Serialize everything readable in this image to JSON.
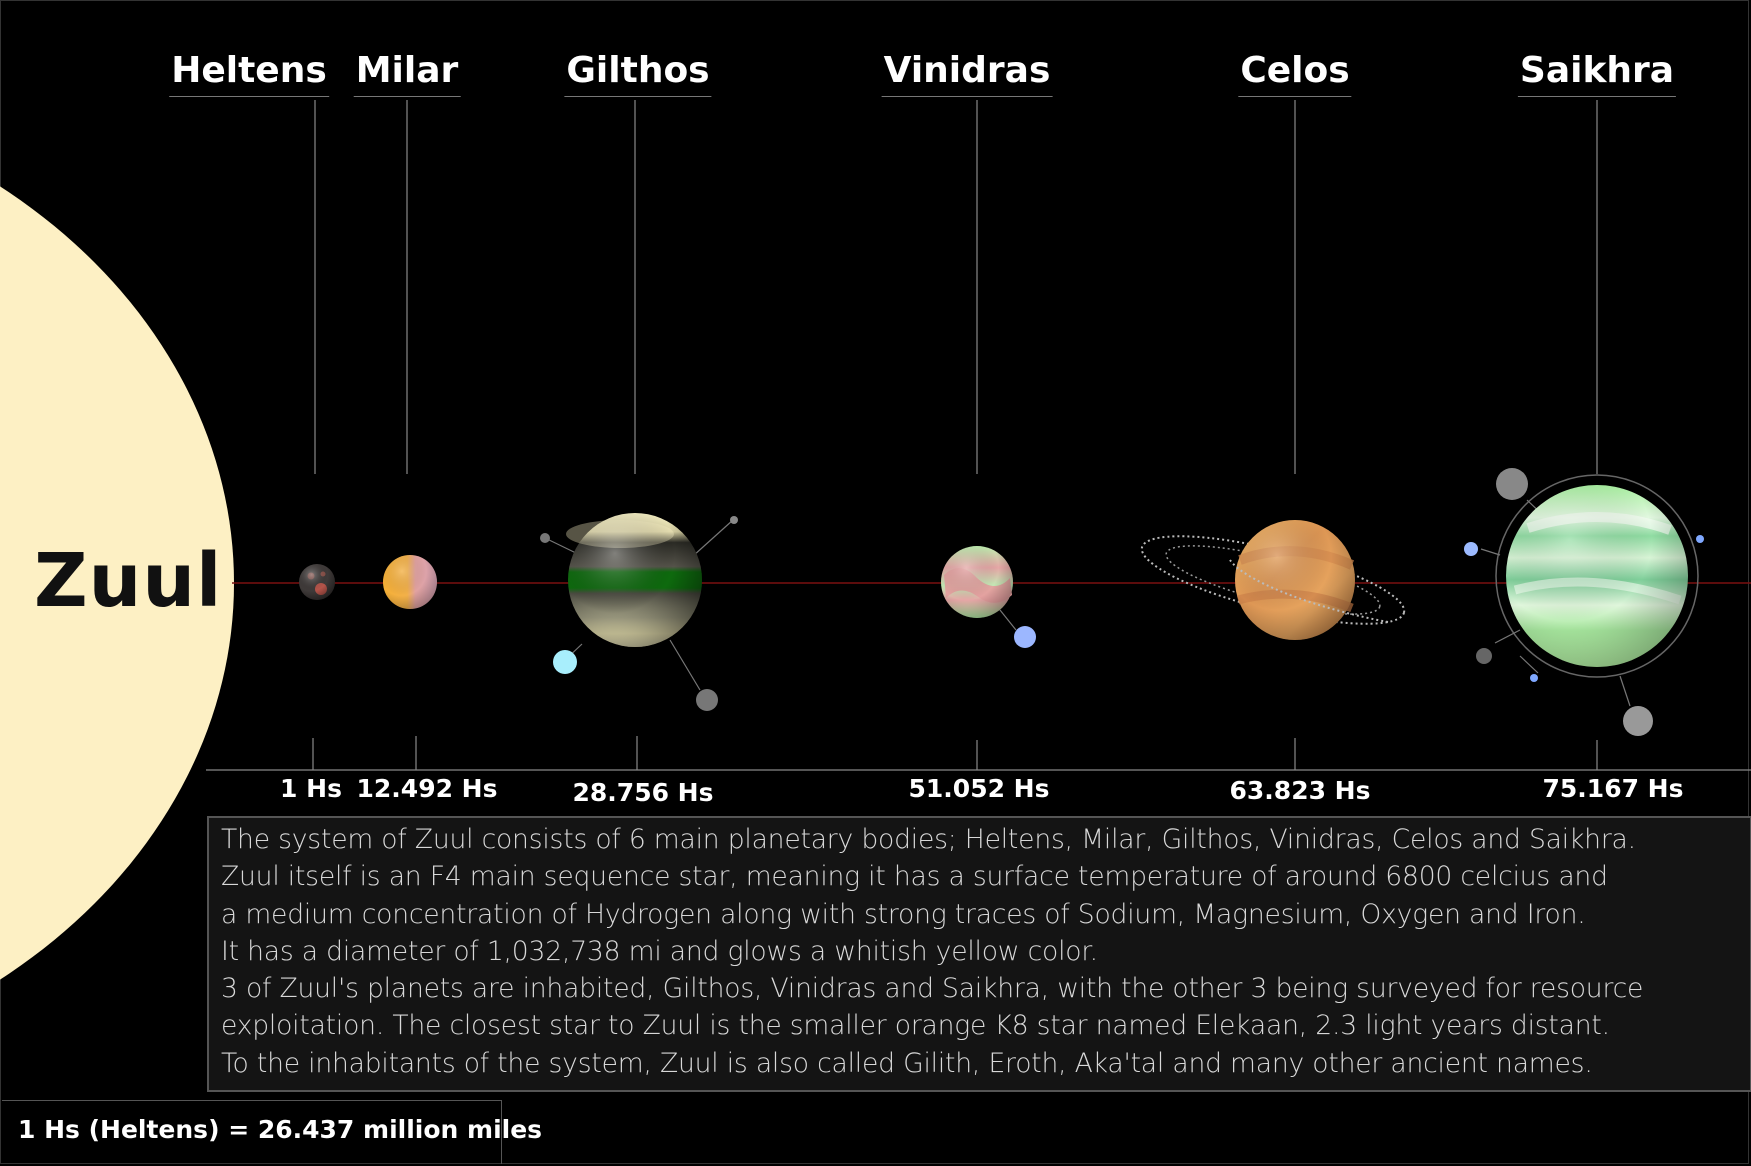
{
  "star": {
    "name": "Zuul",
    "color": "#fdf0c4"
  },
  "planets": [
    {
      "name": "Heltens",
      "distance_hs": 1,
      "distance_label": "1 Hs",
      "moons": 0,
      "rings": false,
      "icon": "rocky-dark-planet-icon"
    },
    {
      "name": "Milar",
      "distance_hs": 12.492,
      "distance_label": "12.492 Hs",
      "moons": 0,
      "rings": false,
      "icon": "orange-pink-planet-icon"
    },
    {
      "name": "Gilthos",
      "distance_hs": 28.756,
      "distance_label": "28.756 Hs",
      "moons": 4,
      "rings": false,
      "icon": "banded-gas-giant-icon"
    },
    {
      "name": "Vinidras",
      "distance_hs": 51.052,
      "distance_label": "51.052 Hs",
      "moons": 1,
      "rings": false,
      "icon": "green-pink-planet-icon"
    },
    {
      "name": "Celos",
      "distance_hs": 63.823,
      "distance_label": "63.823 Hs",
      "moons": 0,
      "rings": true,
      "icon": "ringed-orange-planet-icon"
    },
    {
      "name": "Saikhra",
      "distance_hs": 75.167,
      "distance_label": "75.167 Hs",
      "moons": 6,
      "rings": false,
      "icon": "green-gas-giant-icon"
    }
  ],
  "description": {
    "lines": [
      "The system of Zuul consists of 6 main planetary bodies; Heltens, Milar, Gilthos, Vinidras, Celos and Saikhra.",
      "Zuul itself is an F4 main sequence star, meaning it has a surface temperature of around 6800 celcius and",
      "a medium concentration of Hydrogen along with strong traces of Sodium, Magnesium, Oxygen and Iron.",
      "It has a diameter of 1,032,738 mi and glows a whitish yellow color.",
      "3 of Zuul's planets are inhabited, Gilthos, Vinidras and Saikhra, with the other 3 being surveyed for resource",
      "exploitation.  The closest star to Zuul is the smaller orange K8 star named Elekaan, 2.3 light years distant.",
      "To the inhabitants of the system, Zuul is also called Gilith, Eroth, Aka'tal and many other ancient names."
    ]
  },
  "scale_note": "1 Hs (Heltens) = 26.437 million miles",
  "colors": {
    "background": "#000000",
    "orbit_line": "#7a1010",
    "leader_line": "#888888"
  }
}
